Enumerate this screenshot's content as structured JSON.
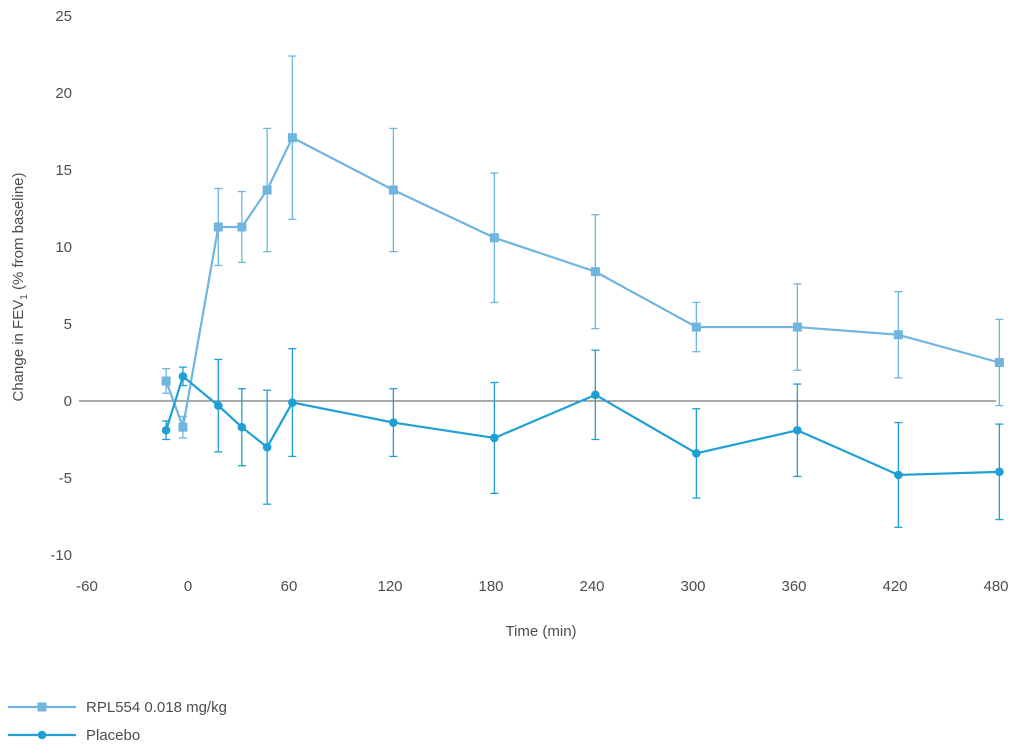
{
  "chart_data": {
    "type": "line",
    "xlabel": "Time (min)",
    "ylabel_main": "Change in FEV",
    "ylabel_sub": "1",
    "ylabel_suffix": " (% from baseline)",
    "xlim": [
      -60,
      480
    ],
    "ylim": [
      -10,
      25
    ],
    "xticks": [
      -60,
      0,
      60,
      120,
      180,
      240,
      300,
      360,
      420,
      480
    ],
    "yticks": [
      -10,
      -5,
      0,
      5,
      10,
      15,
      20,
      25
    ],
    "grid": false,
    "zero_line": true,
    "legend_position": "bottom-left",
    "series": [
      {
        "name": "RPL554 0.018 mg/kg",
        "marker": "square",
        "color": "#6fb5e0",
        "x": [
          -13,
          -3,
          18,
          32,
          47,
          62,
          122,
          182,
          242,
          302,
          362,
          422,
          482
        ],
        "y": [
          1.3,
          -1.7,
          11.3,
          11.3,
          13.7,
          17.1,
          13.7,
          10.6,
          8.4,
          4.8,
          4.8,
          4.3,
          2.5
        ],
        "err": [
          0.8,
          0.7,
          2.5,
          2.3,
          4.0,
          5.3,
          4.0,
          4.2,
          3.7,
          1.6,
          2.8,
          2.8,
          2.8
        ]
      },
      {
        "name": "Placebo",
        "marker": "circle",
        "color": "#1fa0d5",
        "x": [
          -13,
          -3,
          18,
          32,
          47,
          62,
          122,
          182,
          242,
          302,
          362,
          422,
          482
        ],
        "y": [
          -1.9,
          1.6,
          -0.3,
          -1.7,
          -3.0,
          -0.1,
          -1.4,
          -2.4,
          0.4,
          -3.4,
          -1.9,
          -4.8,
          -4.6
        ],
        "err": [
          0.6,
          0.6,
          3.0,
          2.5,
          3.7,
          3.5,
          2.2,
          3.6,
          2.9,
          2.9,
          3.0,
          3.4,
          3.1
        ]
      }
    ]
  }
}
